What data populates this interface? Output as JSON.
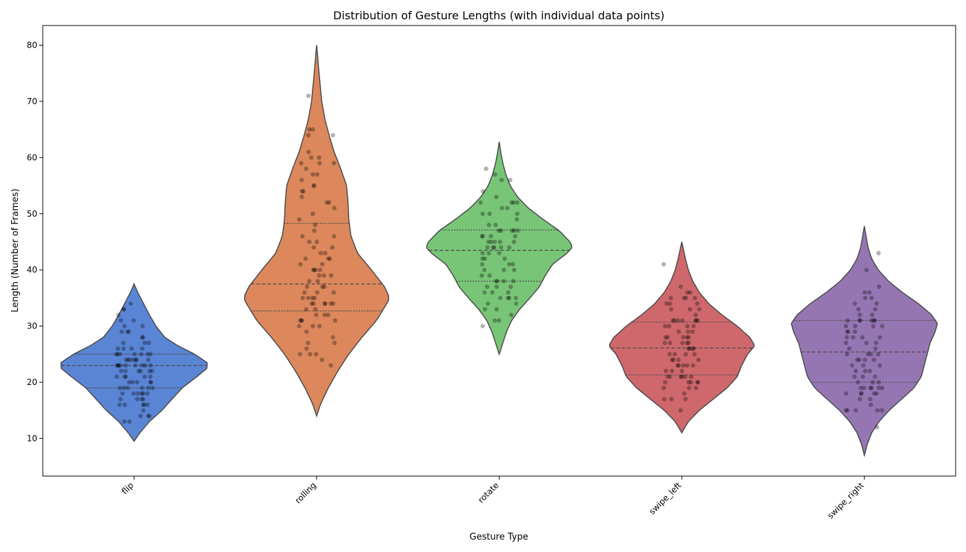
{
  "chart_data": {
    "type": "violin",
    "title": "Distribution of Gesture Lengths (with individual data points)",
    "xlabel": "Gesture Type",
    "ylabel": "Length (Number of Frames)",
    "ylim": [
      3.3,
      83.5
    ],
    "yticks": [
      10,
      20,
      30,
      40,
      50,
      60,
      70,
      80
    ],
    "categories": [
      "flip",
      "rolling",
      "rotate",
      "swipe_left",
      "swipe_right"
    ],
    "colors": [
      "#4878cf",
      "#d87a4a",
      "#6abf69",
      "#c9585c",
      "#8a67ab"
    ],
    "outline_color": "#4a4a4a",
    "point_color": "#000000",
    "grid": false,
    "violins": [
      {
        "category": "flip",
        "min": 9.5,
        "max": 37.5,
        "q1": 19,
        "median": 23,
        "q3": 25,
        "density": [
          [
            9.5,
            0
          ],
          [
            11,
            0.08
          ],
          [
            13,
            0.21
          ],
          [
            15,
            0.38
          ],
          [
            17,
            0.52
          ],
          [
            19,
            0.66
          ],
          [
            21,
            0.86
          ],
          [
            22.5,
            1.0
          ],
          [
            23.5,
            1.0
          ],
          [
            25,
            0.83
          ],
          [
            26.5,
            0.6
          ],
          [
            28,
            0.42
          ],
          [
            30,
            0.3
          ],
          [
            32,
            0.21
          ],
          [
            34,
            0.13
          ],
          [
            36,
            0.05
          ],
          [
            37.5,
            0
          ]
        ],
        "points": [
          34,
          33,
          33,
          32,
          31,
          31,
          30,
          30,
          29,
          29,
          29,
          28,
          28,
          27,
          27,
          27,
          26,
          26,
          26,
          26,
          25,
          25,
          25,
          25,
          25,
          25,
          25,
          24,
          24,
          24,
          24,
          24,
          24,
          24,
          23,
          23,
          23,
          23,
          23,
          23,
          23,
          23,
          23,
          22,
          22,
          22,
          22,
          22,
          22,
          21,
          21,
          21,
          21,
          21,
          20,
          20,
          20,
          20,
          20,
          19,
          19,
          19,
          19,
          19,
          19,
          18,
          18,
          18,
          18,
          18,
          18,
          17,
          17,
          17,
          17,
          16,
          16,
          16,
          16,
          16,
          15,
          14,
          14,
          14,
          13,
          13
        ]
      },
      {
        "category": "rolling",
        "min": 14,
        "max": 80,
        "q1": 32.7,
        "median": 37.5,
        "q3": 48.3,
        "density": [
          [
            14,
            0
          ],
          [
            16,
            0.05
          ],
          [
            19,
            0.16
          ],
          [
            22,
            0.29
          ],
          [
            25,
            0.44
          ],
          [
            28,
            0.62
          ],
          [
            31,
            0.82
          ],
          [
            34,
            0.96
          ],
          [
            35,
            1.0
          ],
          [
            37,
            0.93
          ],
          [
            40,
            0.75
          ],
          [
            43,
            0.56
          ],
          [
            46,
            0.47
          ],
          [
            49,
            0.44
          ],
          [
            52,
            0.43
          ],
          [
            55,
            0.41
          ],
          [
            58,
            0.33
          ],
          [
            61,
            0.24
          ],
          [
            64,
            0.17
          ],
          [
            67,
            0.11
          ],
          [
            70,
            0.07
          ],
          [
            74,
            0.04
          ],
          [
            77,
            0.02
          ],
          [
            80,
            0
          ]
        ],
        "points": [
          71,
          65,
          65,
          64,
          64,
          61,
          60,
          60,
          59,
          59,
          59,
          58,
          57,
          57,
          56,
          55,
          55,
          54,
          54,
          53,
          52,
          52,
          51,
          50,
          49,
          48,
          47,
          46,
          46,
          45,
          45,
          44,
          44,
          43,
          43,
          42,
          42,
          42,
          41,
          41,
          40,
          40,
          40,
          40,
          39,
          39,
          39,
          38,
          38,
          37,
          37,
          37,
          36,
          36,
          36,
          35,
          35,
          35,
          35,
          34,
          34,
          34,
          34,
          34,
          34,
          33,
          33,
          32,
          32,
          32,
          31,
          31,
          31,
          31,
          30,
          30,
          30,
          29,
          28,
          27,
          27,
          26,
          25,
          25,
          25,
          24,
          23
        ]
      },
      {
        "category": "rotate",
        "min": 25,
        "max": 62.8,
        "q1": 38,
        "median": 43.5,
        "q3": 47.1,
        "density": [
          [
            25,
            0
          ],
          [
            27,
            0.05
          ],
          [
            29,
            0.1
          ],
          [
            31,
            0.17
          ],
          [
            33,
            0.28
          ],
          [
            35,
            0.42
          ],
          [
            37,
            0.55
          ],
          [
            39,
            0.63
          ],
          [
            41,
            0.73
          ],
          [
            43,
            0.93
          ],
          [
            44,
            1.0
          ],
          [
            45,
            0.97
          ],
          [
            47,
            0.82
          ],
          [
            49,
            0.6
          ],
          [
            51,
            0.4
          ],
          [
            53,
            0.25
          ],
          [
            55,
            0.15
          ],
          [
            57,
            0.09
          ],
          [
            59,
            0.05
          ],
          [
            61,
            0.02
          ],
          [
            62.8,
            0
          ]
        ],
        "points": [
          58,
          57,
          56,
          56,
          54,
          53,
          52,
          52,
          52,
          52,
          51,
          51,
          50,
          50,
          50,
          49,
          48,
          48,
          47,
          47,
          47,
          47,
          47,
          46,
          46,
          46,
          46,
          45,
          45,
          45,
          45,
          45,
          44,
          44,
          44,
          44,
          44,
          43,
          43,
          43,
          42,
          42,
          42,
          41,
          41,
          41,
          40,
          40,
          40,
          39,
          39,
          38,
          38,
          38,
          38,
          37,
          37,
          37,
          36,
          36,
          36,
          35,
          35,
          35,
          35,
          34,
          34,
          33,
          33,
          32,
          31,
          31,
          30
        ]
      },
      {
        "category": "swipe_left",
        "min": 11,
        "max": 45,
        "q1": 21.3,
        "median": 26.1,
        "q3": 30.7,
        "density": [
          [
            11,
            0
          ],
          [
            13,
            0.09
          ],
          [
            15,
            0.24
          ],
          [
            17,
            0.43
          ],
          [
            19,
            0.62
          ],
          [
            21,
            0.76
          ],
          [
            23,
            0.82
          ],
          [
            25,
            0.9
          ],
          [
            26.5,
            1.0
          ],
          [
            28,
            0.93
          ],
          [
            30,
            0.76
          ],
          [
            32,
            0.55
          ],
          [
            34,
            0.37
          ],
          [
            36,
            0.24
          ],
          [
            38,
            0.15
          ],
          [
            40,
            0.09
          ],
          [
            42,
            0.05
          ],
          [
            45,
            0
          ]
        ],
        "points": [
          41,
          37,
          36,
          36,
          35,
          35,
          35,
          35,
          34,
          34,
          34,
          33,
          33,
          33,
          32,
          31,
          31,
          31,
          31,
          31,
          31,
          31,
          30,
          30,
          30,
          30,
          29,
          29,
          29,
          28,
          28,
          28,
          28,
          28,
          27,
          27,
          27,
          27,
          27,
          26,
          26,
          26,
          26,
          25,
          25,
          25,
          25,
          24,
          24,
          24,
          24,
          23,
          23,
          23,
          23,
          23,
          22,
          22,
          22,
          21,
          21,
          21,
          21,
          21,
          21,
          20,
          20,
          20,
          20,
          20,
          19,
          19,
          19,
          18,
          17,
          17,
          17,
          15
        ]
      },
      {
        "category": "swipe_right",
        "min": 7,
        "max": 47.8,
        "q1": 20,
        "median": 25.4,
        "q3": 31,
        "density": [
          [
            7,
            0
          ],
          [
            9,
            0.04
          ],
          [
            11,
            0.1
          ],
          [
            13,
            0.2
          ],
          [
            15,
            0.34
          ],
          [
            17,
            0.51
          ],
          [
            19,
            0.68
          ],
          [
            21,
            0.78
          ],
          [
            23,
            0.82
          ],
          [
            25,
            0.86
          ],
          [
            27,
            0.9
          ],
          [
            29,
            0.97
          ],
          [
            30.5,
            1.0
          ],
          [
            32,
            0.92
          ],
          [
            34,
            0.74
          ],
          [
            36,
            0.52
          ],
          [
            38,
            0.33
          ],
          [
            40,
            0.19
          ],
          [
            42,
            0.1
          ],
          [
            44,
            0.05
          ],
          [
            47.8,
            0
          ]
        ],
        "points": [
          43,
          40,
          37,
          36,
          36,
          35,
          35,
          34,
          34,
          33,
          33,
          32,
          32,
          31,
          31,
          31,
          31,
          31,
          31,
          30,
          30,
          30,
          30,
          29,
          29,
          29,
          28,
          28,
          28,
          28,
          27,
          27,
          27,
          26,
          26,
          25,
          25,
          25,
          25,
          24,
          24,
          24,
          24,
          23,
          23,
          23,
          22,
          22,
          22,
          21,
          21,
          21,
          20,
          20,
          20,
          19,
          19,
          19,
          19,
          19,
          19,
          18,
          18,
          18,
          18,
          18,
          17,
          17,
          16,
          15,
          15,
          15,
          15,
          15,
          12
        ]
      }
    ]
  }
}
